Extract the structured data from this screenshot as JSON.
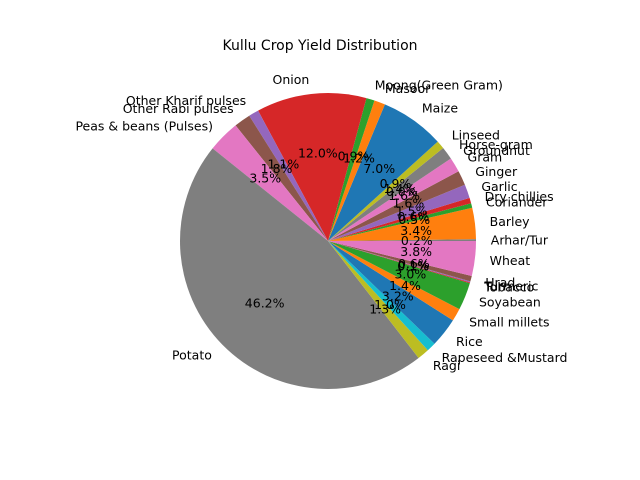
{
  "chart_data": {
    "type": "pie",
    "title": "Kullu Crop Yield Distribution",
    "start_angle_deg": 0,
    "direction": "counterclockwise",
    "slices": [
      {
        "label": "Arhar/Tur",
        "value": 0.2,
        "pct_label": "0.2%",
        "color": "#7f7f7f"
      },
      {
        "label": "Barley",
        "value": 3.4,
        "pct_label": "3.4%",
        "color": "#ff7f0e"
      },
      {
        "label": "Coriander",
        "value": 0.5,
        "pct_label": "0.5%",
        "color": "#2ca02c"
      },
      {
        "label": "Dry chillies",
        "value": 0.6,
        "pct_label": "0.6%",
        "color": "#d62728"
      },
      {
        "label": "Garlic",
        "value": 1.5,
        "pct_label": "1.5%",
        "color": "#9467bd"
      },
      {
        "label": "Ginger",
        "value": 1.6,
        "pct_label": "1.6%",
        "color": "#8c564b"
      },
      {
        "label": "Gram",
        "value": 1.6,
        "pct_label": "1.6%",
        "color": "#e377c2"
      },
      {
        "label": "Groundnut",
        "value": 0.0,
        "pct_label": "0.0%",
        "color": "#7f7f7f"
      },
      {
        "label": "Horse-gram",
        "value": 1.4,
        "pct_label": "1.4%",
        "color": "#7f7f7f"
      },
      {
        "label": "Linseed",
        "value": 0.9,
        "pct_label": "0.9%",
        "color": "#bcbd22"
      },
      {
        "label": "Maize",
        "value": 7.0,
        "pct_label": "7.0%",
        "color": "#1f77b4"
      },
      {
        "label": "Masoor",
        "value": 1.2,
        "pct_label": "1.2%",
        "color": "#ff7f0e"
      },
      {
        "label": "Moong(Green Gram)",
        "value": 0.9,
        "pct_label": "0.9%",
        "color": "#2ca02c"
      },
      {
        "label": "Onion",
        "value": 12.0,
        "pct_label": "12.0%",
        "color": "#d62728"
      },
      {
        "label": "Other Kharif pulses",
        "value": 1.1,
        "pct_label": "1.1%",
        "color": "#9467bd"
      },
      {
        "label": "Other Rabi pulses",
        "value": 1.8,
        "pct_label": "1.8%",
        "color": "#8c564b"
      },
      {
        "label": "Peas & beans (Pulses)",
        "value": 3.5,
        "pct_label": "3.5%",
        "color": "#e377c2"
      },
      {
        "label": "Potato",
        "value": 46.2,
        "pct_label": "46.2%",
        "color": "#7f7f7f"
      },
      {
        "label": "Ragi",
        "value": 1.3,
        "pct_label": "1.3%",
        "color": "#bcbd22"
      },
      {
        "label": "Rapeseed &Mustard",
        "value": 1.0,
        "pct_label": "1.0%",
        "color": "#17becf"
      },
      {
        "label": "Rice",
        "value": 3.2,
        "pct_label": "3.2%",
        "color": "#1f77b4"
      },
      {
        "label": "Small millets",
        "value": 1.4,
        "pct_label": "1.4%",
        "color": "#ff7f0e"
      },
      {
        "label": "Soyabean",
        "value": 3.0,
        "pct_label": "3.0%",
        "color": "#2ca02c"
      },
      {
        "label": "Tobacco",
        "value": 0.1,
        "pct_label": "0.1%",
        "color": "#d62728"
      },
      {
        "label": "Turmeric",
        "value": 0.1,
        "pct_label": "0.1%",
        "color": "#9467bd"
      },
      {
        "label": "Urad",
        "value": 0.6,
        "pct_label": "0.6%",
        "color": "#8c564b"
      },
      {
        "label": "Wheat",
        "value": 3.8,
        "pct_label": "3.8%",
        "color": "#e377c2"
      }
    ]
  }
}
